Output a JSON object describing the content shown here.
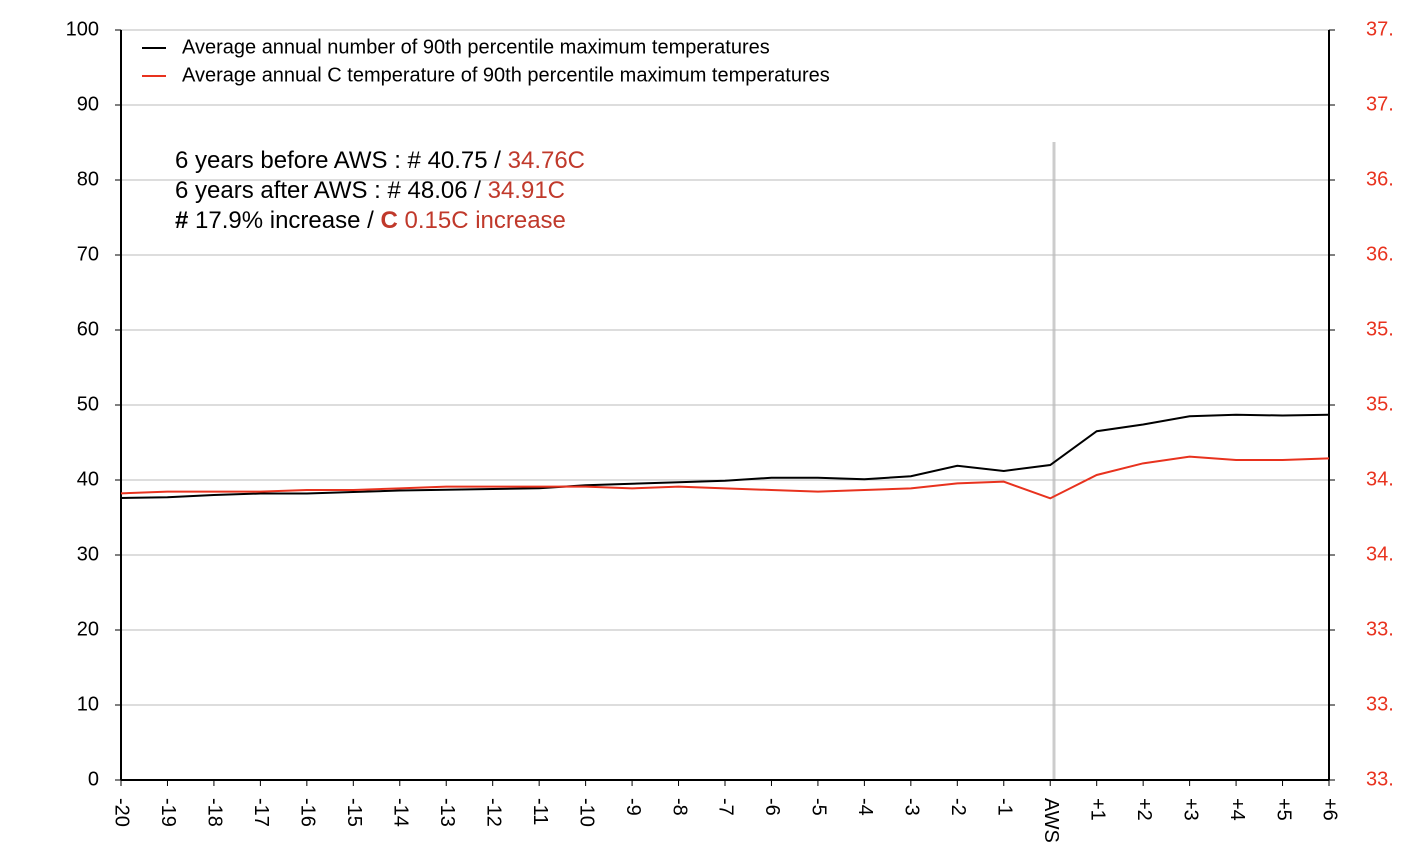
{
  "chart_data": {
    "type": "line",
    "categories": [
      "-20",
      "-19",
      "-18",
      "-17",
      "-16",
      "-15",
      "-14",
      "-13",
      "-12",
      "-11",
      "-10",
      "-9",
      "-8",
      "-7",
      "-6",
      "-5",
      "-4",
      "-3",
      "-2",
      "-1",
      "AWS",
      "+1",
      "+2",
      "+3",
      "+4",
      "+5",
      "+6"
    ],
    "series": [
      {
        "name": "Average annual number of 90th percentile maximum temperatures",
        "color": "#000000",
        "values": [
          37.6,
          37.7,
          38.0,
          38.2,
          38.2,
          38.4,
          38.6,
          38.7,
          38.8,
          38.9,
          39.3,
          39.5,
          39.7,
          39.9,
          40.3,
          40.3,
          40.1,
          40.5,
          41.9,
          41.2,
          42.0,
          46.5,
          47.4,
          48.5,
          48.7,
          48.6,
          48.7
        ]
      },
      {
        "name": "Average annual C temperature of 90th percentile maximum temperatures",
        "color": "#e8321e",
        "axis": "y2",
        "values": [
          34.72,
          34.73,
          34.73,
          34.73,
          34.74,
          34.74,
          34.75,
          34.76,
          34.76,
          34.76,
          34.76,
          34.75,
          34.76,
          34.75,
          34.74,
          34.73,
          34.74,
          34.75,
          34.78,
          34.79,
          34.69,
          34.83,
          34.9,
          34.94,
          34.92,
          34.92,
          34.93
        ]
      }
    ],
    "ylim": [
      0,
      100
    ],
    "yticks": [
      0,
      10,
      20,
      30,
      40,
      50,
      60,
      70,
      80,
      90,
      100
    ],
    "y2lim": [
      33,
      37.5
    ],
    "y2ticks": [
      {
        "value": 33,
        "label": "33."
      },
      {
        "value": 33.45,
        "label": "33."
      },
      {
        "value": 33.9,
        "label": "33."
      },
      {
        "value": 34.35,
        "label": "34."
      },
      {
        "value": 34.8,
        "label": "34."
      },
      {
        "value": 35.25,
        "label": "35."
      },
      {
        "value": 35.7,
        "label": "35."
      },
      {
        "value": 36.15,
        "label": "36."
      },
      {
        "value": 36.6,
        "label": "36."
      },
      {
        "value": 37.05,
        "label": "37."
      },
      {
        "value": 37.5,
        "label": "37."
      }
    ],
    "y2_color": "#e8321e",
    "grid": true,
    "legend": "upper left",
    "annotations": [
      [
        {
          "text": "6 years before AWS : # 40.75 / "
        },
        {
          "text": "34.76C",
          "color": "#c0392b"
        }
      ],
      [
        {
          "text": "6 years after AWS : # 48.06 / "
        },
        {
          "text": "34.91C",
          "color": "#c0392b"
        }
      ],
      [
        {
          "text": "#",
          "bold": true
        },
        {
          "text": " 17.9% increase / "
        },
        {
          "text": "C",
          "color": "#c0392b",
          "bold": true
        },
        {
          "text": " 0.15C increase",
          "color": "#c0392b"
        }
      ]
    ]
  }
}
